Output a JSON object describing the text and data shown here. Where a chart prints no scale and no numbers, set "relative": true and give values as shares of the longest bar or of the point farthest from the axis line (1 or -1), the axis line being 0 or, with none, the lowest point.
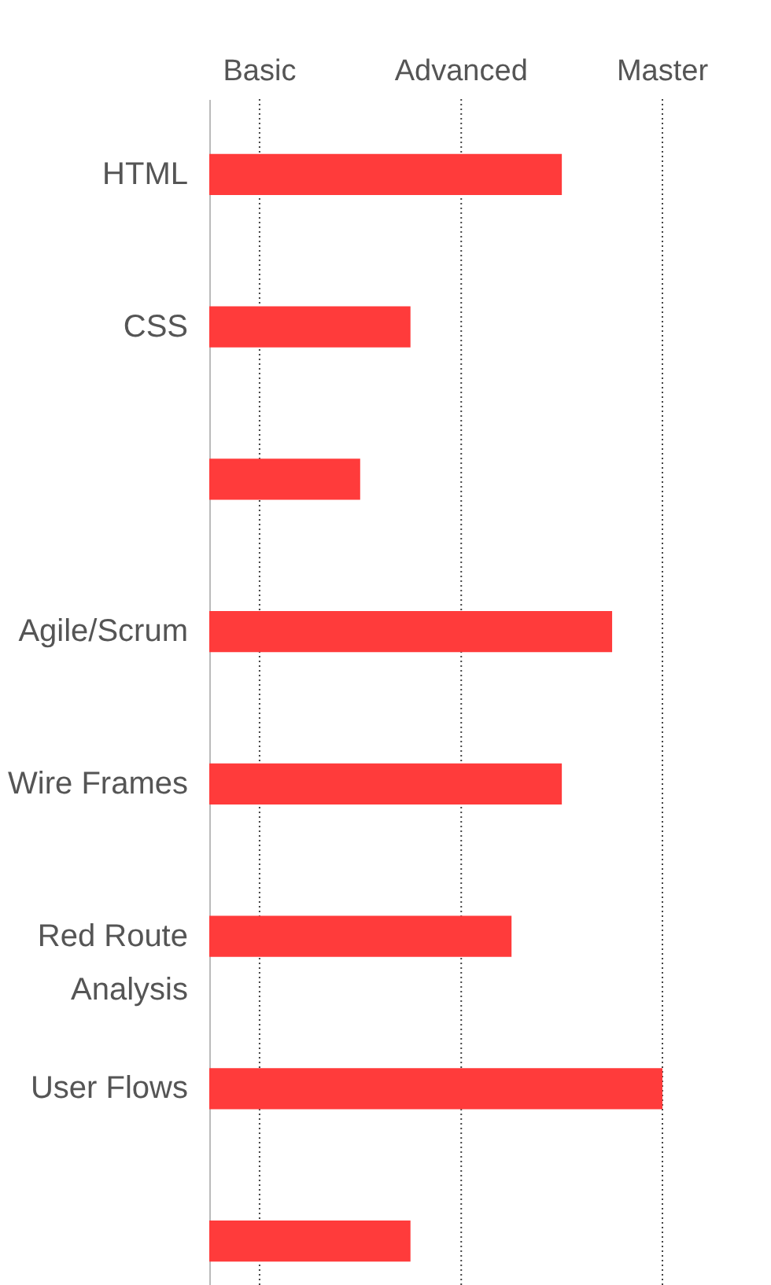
{
  "chart_data": {
    "type": "bar",
    "orientation": "horizontal",
    "relative": true,
    "categories": [
      "HTML",
      "CSS",
      null,
      "Agile/Scrum",
      "Wire Frames",
      "Red Route Analysis",
      "User Flows",
      null
    ],
    "values": [
      0.778,
      0.444,
      0.333,
      0.889,
      0.778,
      0.667,
      1,
      0.444
    ],
    "color": "#ff3b3b",
    "ref_lines": [
      {
        "axis": "x",
        "value": 0.111,
        "label": "Basic",
        "line_style": "dotted"
      },
      {
        "axis": "x",
        "value": 0.556,
        "label": "Advanced",
        "line_style": "dotted"
      },
      {
        "axis": "x",
        "value": 1,
        "label": "Master",
        "line_style": "dotted"
      }
    ]
  }
}
